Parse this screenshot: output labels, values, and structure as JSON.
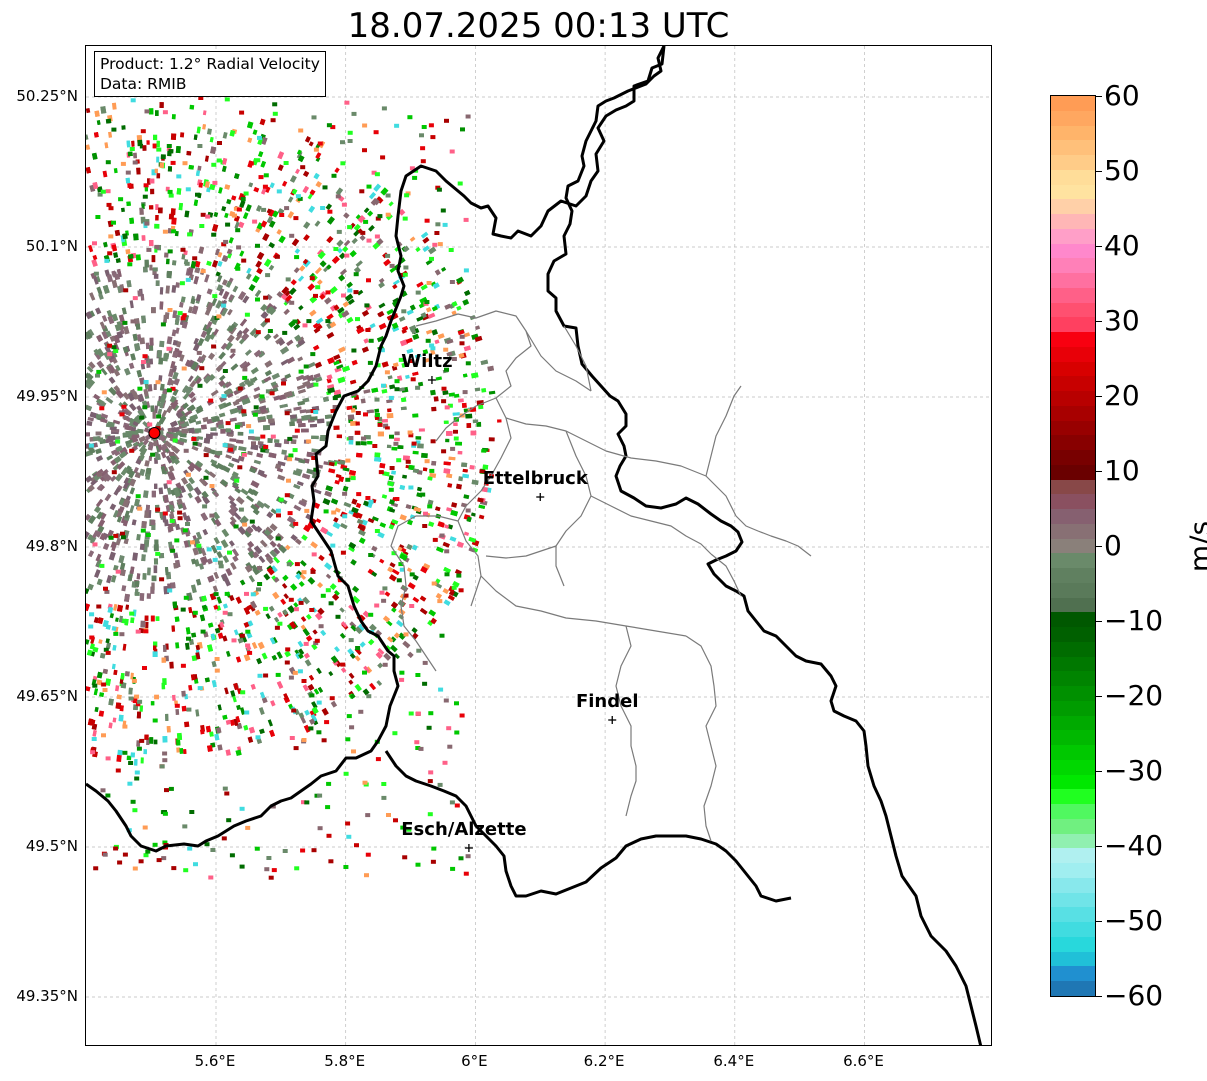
{
  "title": "18.07.2025 00:13 UTC",
  "info": {
    "product": "Product: 1.2° Radial Velocity",
    "data": "Data: RMIB"
  },
  "map": {
    "lon_range": [
      5.4,
      6.8
    ],
    "lat_range": [
      49.3,
      50.3
    ],
    "lat_ticks": [
      {
        "value": 50.25,
        "label": "50.25°N"
      },
      {
        "value": 50.1,
        "label": "50.1°N"
      },
      {
        "value": 49.95,
        "label": "49.95°N"
      },
      {
        "value": 49.8,
        "label": "49.8°N"
      },
      {
        "value": 49.65,
        "label": "49.65°N"
      },
      {
        "value": 49.5,
        "label": "49.5°N"
      },
      {
        "value": 49.35,
        "label": "49.35°N"
      }
    ],
    "lon_ticks": [
      {
        "value": 5.6,
        "label": "5.6°E"
      },
      {
        "value": 5.8,
        "label": "5.8°E"
      },
      {
        "value": 6.0,
        "label": "6°E"
      },
      {
        "value": 6.2,
        "label": "6.2°E"
      },
      {
        "value": 6.4,
        "label": "6.4°E"
      },
      {
        "value": 6.6,
        "label": "6.6°E"
      }
    ],
    "grid": true,
    "radar_site": {
      "lon": 5.505,
      "lat": 49.914,
      "marker_color": "#ff0000"
    },
    "cities": [
      {
        "name": "Wiltz",
        "lon": 5.933,
        "lat": 49.967
      },
      {
        "name": "Ettelbruck",
        "lon": 6.1,
        "lat": 49.85
      },
      {
        "name": "Findel",
        "lon": 6.211,
        "lat": 49.627
      },
      {
        "name": "Esch/Alzette",
        "lon": 5.99,
        "lat": 49.499
      }
    ]
  },
  "colorbar": {
    "label": "m/s",
    "range": [
      -60,
      60
    ],
    "ticks": [
      "60",
      "50",
      "40",
      "30",
      "20",
      "10",
      "0",
      "−10",
      "−20",
      "−30",
      "−40",
      "−50",
      "−60"
    ],
    "tick_values": [
      60,
      50,
      40,
      30,
      20,
      10,
      0,
      -10,
      -20,
      -30,
      -40,
      -50,
      -60
    ],
    "colors_top_to_bottom": [
      "#ff9c55",
      "#ffa760",
      "#ffb46a",
      "#ffc07a",
      "#ffcc88",
      "#ffdd99",
      "#ffe3a0",
      "#ffd0a8",
      "#ffb6b6",
      "#ff9fc8",
      "#ff88cc",
      "#ff80b8",
      "#ff70a0",
      "#ff6088",
      "#ff5070",
      "#ff4060",
      "#f80010",
      "#e80008",
      "#d80000",
      "#c80000",
      "#b80000",
      "#a80000",
      "#980000",
      "#880000",
      "#780000",
      "#6a0000",
      "#884848",
      "#8a5060",
      "#866070",
      "#887074",
      "#8a807a",
      "#6a8a6a",
      "#608060",
      "#5a7a5a",
      "#507050",
      "#005800",
      "#006000",
      "#006c00",
      "#007800",
      "#008400",
      "#009000",
      "#009c00",
      "#00aa00",
      "#00b800",
      "#00c800",
      "#00d800",
      "#00e800",
      "#20ff20",
      "#50f860",
      "#70f080",
      "#90f0b0",
      "#b0f0f0",
      "#a0eef0",
      "#88e8ec",
      "#70e4e8",
      "#58e0e4",
      "#40dce0",
      "#28d8dc",
      "#20c0d8",
      "#2090d0",
      "#1f77b4"
    ]
  }
}
